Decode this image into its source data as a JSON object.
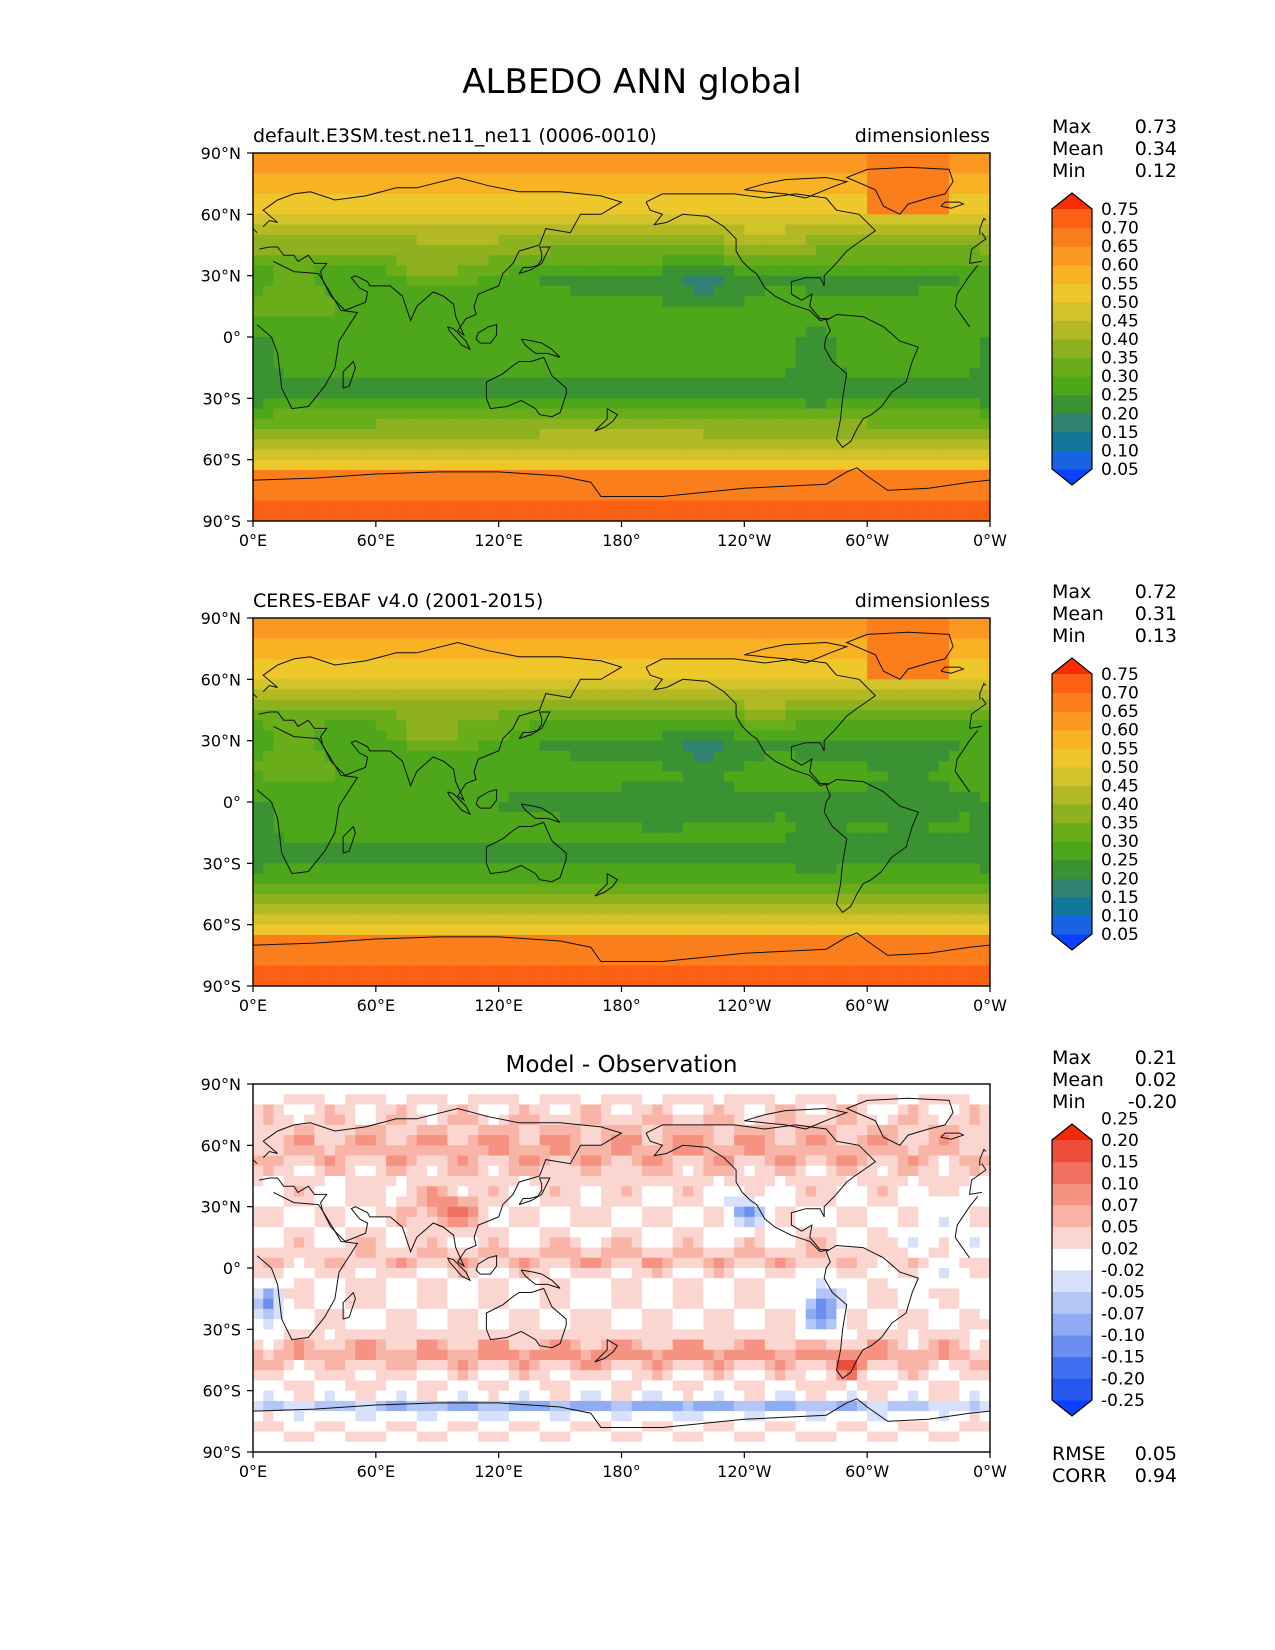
{
  "title": "ALBEDO ANN global",
  "colors": {
    "albedo_levels": [
      "#0a40ff",
      "#1863e2",
      "#12779a",
      "#2f8370",
      "#3b9233",
      "#4ea61a",
      "#6aad1a",
      "#8eb21f",
      "#b2b922",
      "#d2c32a",
      "#eec82a",
      "#f8b224",
      "#fa9821",
      "#fa7e1b",
      "#fa6112",
      "#fa2c06"
    ],
    "diff_levels": [
      "#0a40ff",
      "#2556f0",
      "#3f6ff0",
      "#6a8ff0",
      "#8fabf2",
      "#b4c6f6",
      "#d7e1fb",
      "#ffffff",
      "#fbd6d0",
      "#f9b4a8",
      "#f69282",
      "#f2705f",
      "#ee4d3c",
      "#f02a08"
    ],
    "axis": "#000000",
    "coast": "#111111"
  },
  "chart_data": [
    {
      "type": "heatmap",
      "subtitle_left": "default.E3SM.test.ne11_ne11 (0006-0010)",
      "subtitle_center": "",
      "subtitle_right": "dimensionless",
      "x_ticks": [
        "0°E",
        "60°E",
        "120°E",
        "180°",
        "120°W",
        "60°W",
        "0°W"
      ],
      "y_ticks": [
        "90°N",
        "60°N",
        "30°N",
        "0°",
        "30°S",
        "60°S",
        "90°S"
      ],
      "xlim": [
        0,
        360
      ],
      "ylim": [
        -90,
        90
      ],
      "stats": [
        {
          "label": "Max",
          "value": "0.73"
        },
        {
          "label": "Mean",
          "value": "0.34"
        },
        {
          "label": "Min",
          "value": "0.12"
        }
      ],
      "colorbar": {
        "levels": [
          0.05,
          0.1,
          0.15,
          0.2,
          0.25,
          0.3,
          0.35,
          0.4,
          0.45,
          0.5,
          0.55,
          0.6,
          0.65,
          0.7,
          0.75
        ],
        "labels": [
          "0.05",
          "0.10",
          "0.15",
          "0.20",
          "0.25",
          "0.30",
          "0.35",
          "0.40",
          "0.45",
          "0.50",
          "0.55",
          "0.60",
          "0.65",
          "0.70",
          "0.75"
        ],
        "extend": "both"
      },
      "extra_stats": []
    },
    {
      "type": "heatmap",
      "subtitle_left": "CERES-EBAF v4.0 (2001-2015)",
      "subtitle_center": "",
      "subtitle_right": "dimensionless",
      "x_ticks": [
        "0°E",
        "60°E",
        "120°E",
        "180°",
        "120°W",
        "60°W",
        "0°W"
      ],
      "y_ticks": [
        "90°N",
        "60°N",
        "30°N",
        "0°",
        "30°S",
        "60°S",
        "90°S"
      ],
      "xlim": [
        0,
        360
      ],
      "ylim": [
        -90,
        90
      ],
      "stats": [
        {
          "label": "Max",
          "value": "0.72"
        },
        {
          "label": "Mean",
          "value": "0.31"
        },
        {
          "label": "Min",
          "value": "0.13"
        }
      ],
      "colorbar": {
        "levels": [
          0.05,
          0.1,
          0.15,
          0.2,
          0.25,
          0.3,
          0.35,
          0.4,
          0.45,
          0.5,
          0.55,
          0.6,
          0.65,
          0.7,
          0.75
        ],
        "labels": [
          "0.05",
          "0.10",
          "0.15",
          "0.20",
          "0.25",
          "0.30",
          "0.35",
          "0.40",
          "0.45",
          "0.50",
          "0.55",
          "0.60",
          "0.65",
          "0.70",
          "0.75"
        ],
        "extend": "both"
      },
      "extra_stats": []
    },
    {
      "type": "heatmap",
      "subtitle_left": "",
      "subtitle_center": "Model - Observation",
      "subtitle_right": "",
      "x_ticks": [
        "0°E",
        "60°E",
        "120°E",
        "180°",
        "120°W",
        "60°W",
        "0°W"
      ],
      "y_ticks": [
        "90°N",
        "60°N",
        "30°N",
        "0°",
        "30°S",
        "60°S",
        "90°S"
      ],
      "xlim": [
        0,
        360
      ],
      "ylim": [
        -90,
        90
      ],
      "stats": [
        {
          "label": "Max",
          "value": "0.21"
        },
        {
          "label": "Mean",
          "value": "0.02"
        },
        {
          "label": "Min",
          "value": "-0.20"
        }
      ],
      "colorbar": {
        "levels": [
          -0.25,
          -0.2,
          -0.15,
          -0.1,
          -0.07,
          -0.05,
          -0.02,
          0.02,
          0.05,
          0.07,
          0.1,
          0.15,
          0.2,
          0.25
        ],
        "labels": [
          "-0.25",
          "-0.20",
          "-0.15",
          "-0.10",
          "-0.07",
          "-0.05",
          "-0.02",
          "0.02",
          "0.05",
          "0.07",
          "0.10",
          "0.15",
          "0.20",
          "0.25"
        ],
        "extend": "both"
      },
      "extra_stats": [
        {
          "label": "RMSE",
          "value": "0.05"
        },
        {
          "label": "CORR",
          "value": "0.94"
        }
      ]
    }
  ]
}
